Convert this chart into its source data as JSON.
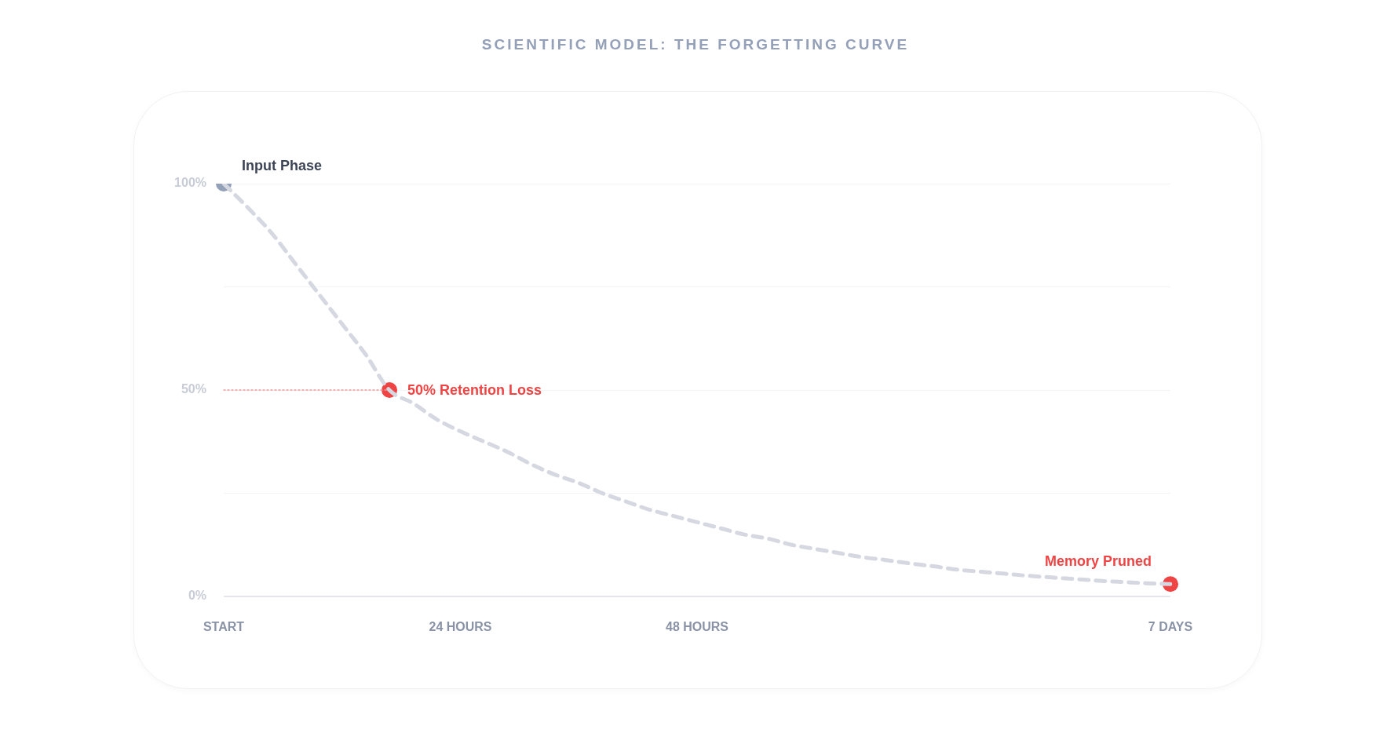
{
  "chart_data": {
    "type": "line",
    "title": "SCIENTIFIC MODEL: THE FORGETTING CURVE",
    "categories": [
      "START",
      null,
      null,
      null,
      null,
      null,
      null,
      null,
      null,
      null,
      "24 HOURS",
      null,
      null,
      null,
      null,
      null,
      null,
      null,
      null,
      null,
      "48 HOURS",
      null,
      null,
      null,
      null,
      null,
      null,
      null,
      null,
      null,
      null,
      null,
      null,
      null,
      null,
      null,
      null,
      null,
      null,
      null,
      "7 DAYS"
    ],
    "ylim": [
      0,
      100
    ],
    "yticks": [
      {
        "value": 0,
        "label": "0%"
      },
      {
        "value": 25,
        "label": null
      },
      {
        "value": 50,
        "label": "50%"
      },
      {
        "value": 75,
        "label": null
      },
      {
        "value": 100,
        "label": "100%"
      }
    ],
    "grid": "y",
    "legend": false,
    "series": [
      {
        "type": "line",
        "color": "#d5d8e0",
        "line_style": "dashed",
        "marker": "none",
        "values": [
          100,
          94.3,
          88.2,
          80.8,
          73.4,
          66,
          58.6,
          50,
          46.8,
          42.9,
          40,
          37.5,
          35,
          32,
          29.5,
          27.5,
          25,
          23,
          21,
          19.5,
          18,
          16.5,
          15,
          14,
          12.5,
          11.5,
          10.5,
          9.5,
          8.8,
          8,
          7.3,
          6.5,
          6,
          5.5,
          5,
          4.6,
          4.2,
          3.8,
          3.5,
          3.2,
          3
        ]
      },
      {
        "type": "line",
        "color": "#f09a9a",
        "line_style": "dotted",
        "marker": "none",
        "values": [
          50,
          50,
          50,
          50,
          50,
          50,
          50,
          50,
          null,
          null,
          null,
          null,
          null,
          null,
          null,
          null,
          null,
          null,
          null,
          null,
          null,
          null,
          null,
          null,
          null,
          null,
          null,
          null,
          null,
          null,
          null,
          null,
          null,
          null,
          null,
          null,
          null,
          null,
          null,
          null,
          null
        ]
      },
      {
        "type": "scatter",
        "marker": "circle",
        "colors": [
          "#94a0b8",
          null,
          null,
          null,
          null,
          null,
          null,
          "#ef4444",
          null,
          null,
          null,
          null,
          null,
          null,
          null,
          null,
          null,
          null,
          null,
          null,
          null,
          null,
          null,
          null,
          null,
          null,
          null,
          null,
          null,
          null,
          null,
          null,
          null,
          null,
          null,
          null,
          null,
          null,
          null,
          null,
          "#ef4444"
        ],
        "values": [
          100,
          null,
          null,
          null,
          null,
          null,
          null,
          50,
          null,
          null,
          null,
          null,
          null,
          null,
          null,
          null,
          null,
          null,
          null,
          null,
          null,
          null,
          null,
          null,
          null,
          null,
          null,
          null,
          null,
          null,
          null,
          null,
          null,
          null,
          null,
          null,
          null,
          null,
          null,
          null,
          3
        ]
      }
    ],
    "annotations": [
      "Input Phase",
      "50% Retention Loss",
      "Memory Pruned"
    ]
  }
}
